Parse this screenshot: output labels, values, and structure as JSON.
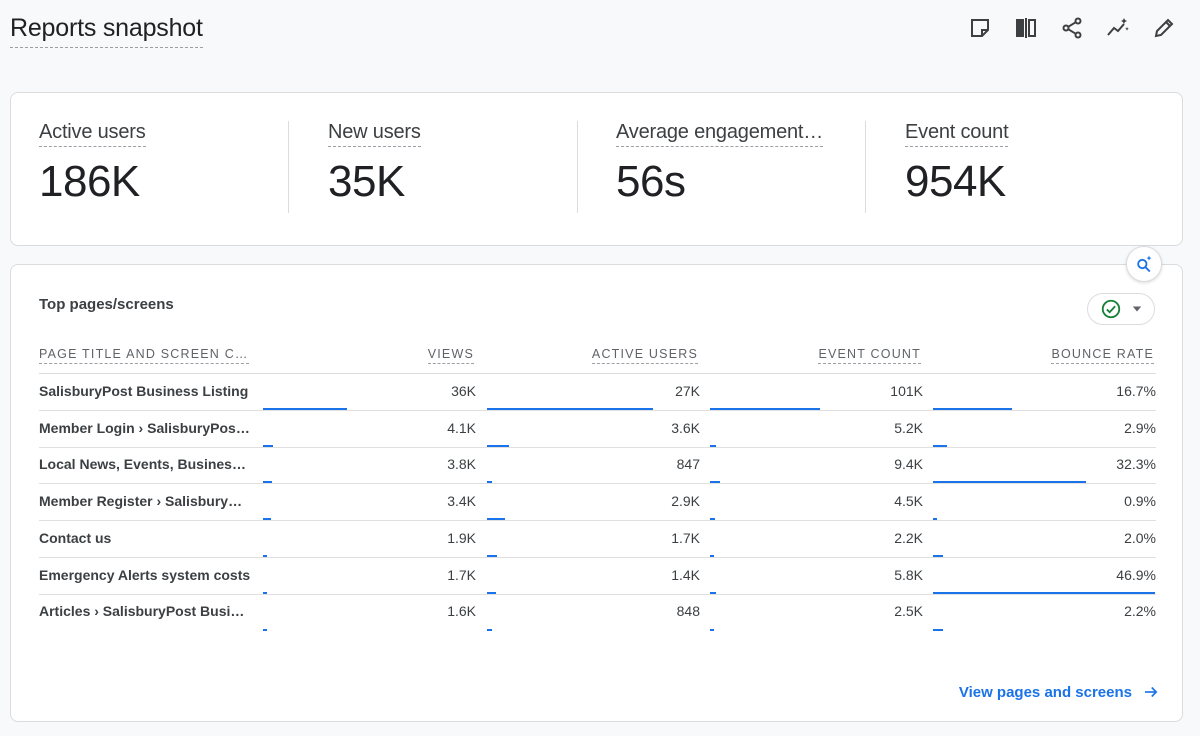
{
  "header": {
    "title": "Reports snapshot",
    "toolbar_icons": [
      "note-icon",
      "compare-columns-icon",
      "share-icon",
      "insights-icon",
      "edit-icon"
    ]
  },
  "metrics": [
    {
      "label": "Active users",
      "value": "186K"
    },
    {
      "label": "New users",
      "value": "35K"
    },
    {
      "label": "Average engagement…",
      "value": "56s"
    },
    {
      "label": "Event count",
      "value": "954K"
    }
  ],
  "table": {
    "title": "Top pages/screens",
    "columns": [
      "PAGE TITLE AND SCREEN C…",
      "VIEWS",
      "ACTIVE USERS",
      "EVENT COUNT",
      "BOUNCE RATE"
    ],
    "rows": [
      {
        "title": "SalisburyPost Business Listing",
        "views": "36K",
        "active_users": "27K",
        "event_count": "101K",
        "bounce_rate": "16.7%",
        "bars": {
          "views": 1.0,
          "active_users": 1.0,
          "event_count": 1.0,
          "bounce_rate": 0.356
        }
      },
      {
        "title": "Member Login › SalisburyPost Business Directory",
        "views": "4.1K",
        "active_users": "3.6K",
        "event_count": "5.2K",
        "bounce_rate": "2.9%",
        "bars": {
          "views": 0.114,
          "active_users": 0.133,
          "event_count": 0.051,
          "bounce_rate": 0.062
        }
      },
      {
        "title": "Local News, Events, Business Directory",
        "views": "3.8K",
        "active_users": "847",
        "event_count": "9.4K",
        "bounce_rate": "32.3%",
        "bars": {
          "views": 0.106,
          "active_users": 0.031,
          "event_count": 0.093,
          "bounce_rate": 0.689
        }
      },
      {
        "title": "Member Register › SalisburyPost Business Directory",
        "views": "3.4K",
        "active_users": "2.9K",
        "event_count": "4.5K",
        "bounce_rate": "0.9%",
        "bars": {
          "views": 0.094,
          "active_users": 0.107,
          "event_count": 0.045,
          "bounce_rate": 0.019
        }
      },
      {
        "title": "Contact us",
        "views": "1.9K",
        "active_users": "1.7K",
        "event_count": "2.2K",
        "bounce_rate": "2.0%",
        "bars": {
          "views": 0.053,
          "active_users": 0.063,
          "event_count": 0.022,
          "bounce_rate": 0.043
        }
      },
      {
        "title": "Emergency Alerts system costs",
        "views": "1.7K",
        "active_users": "1.4K",
        "event_count": "5.8K",
        "bounce_rate": "46.9%",
        "bars": {
          "views": 0.047,
          "active_users": 0.052,
          "event_count": 0.057,
          "bounce_rate": 1.0
        }
      },
      {
        "title": "Articles › SalisburyPost Business Directory",
        "views": "1.6K",
        "active_users": "848",
        "event_count": "2.5K",
        "bounce_rate": "2.2%",
        "bars": {
          "views": 0.044,
          "active_users": 0.031,
          "event_count": 0.025,
          "bounce_rate": 0.047
        }
      }
    ]
  },
  "footer": {
    "link_label": "View pages and screens"
  },
  "colors": {
    "accent": "#1a73e8",
    "check": "#188038"
  }
}
